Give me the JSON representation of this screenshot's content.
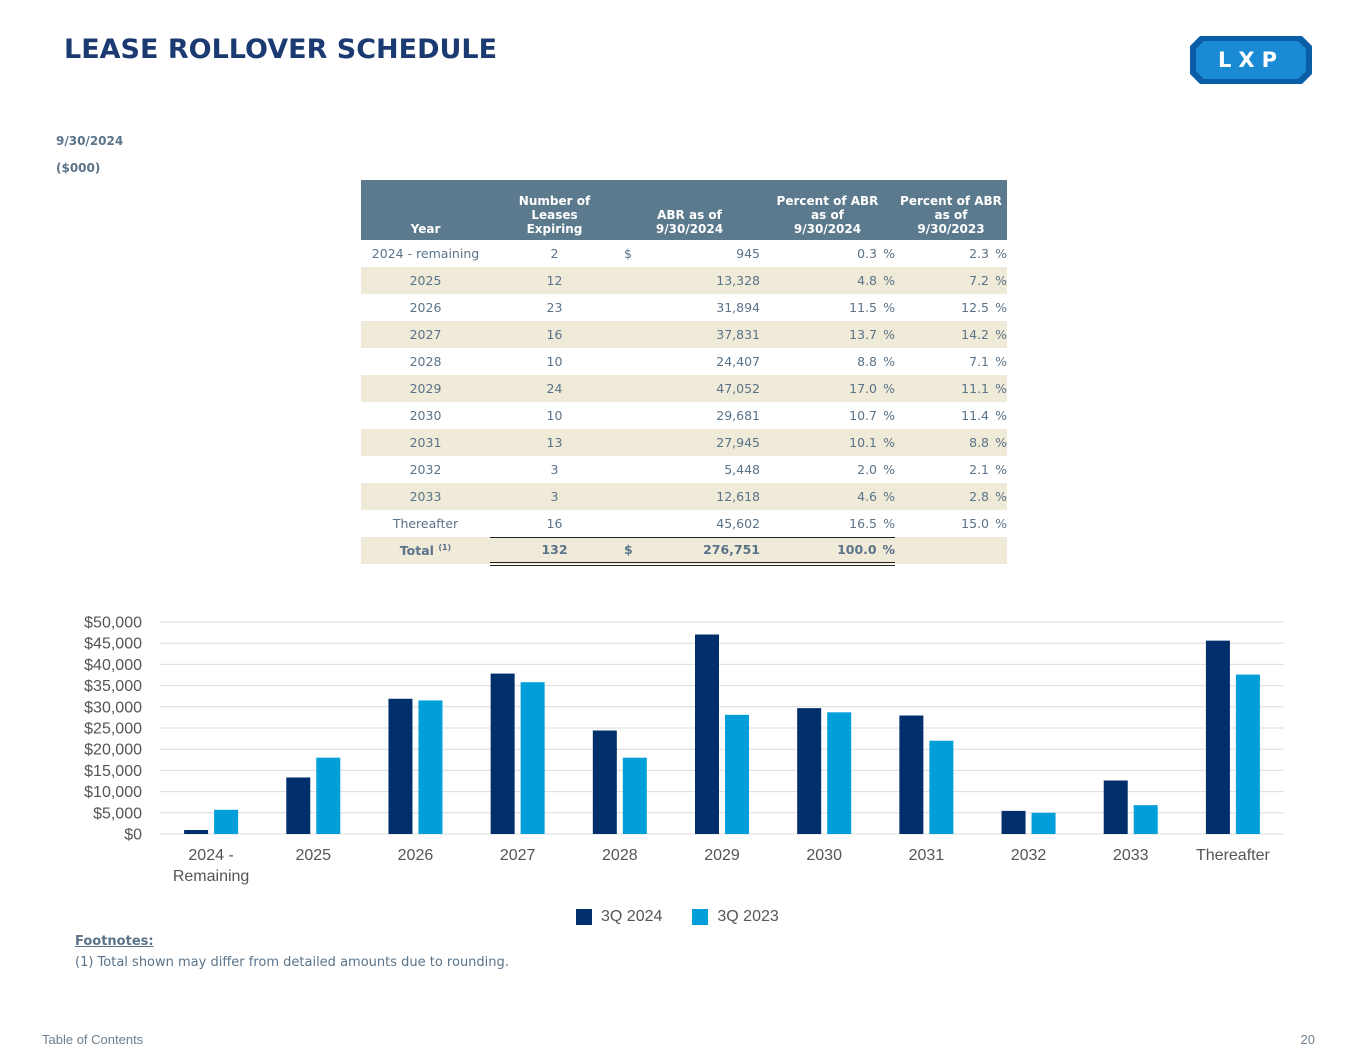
{
  "title": "LEASE ROLLOVER SCHEDULE",
  "logo": {
    "text": "LXP",
    "colors": [
      "#1a8ad4",
      "#0a5ea8",
      "#2ca3ea"
    ]
  },
  "date": "9/30/2024",
  "units": "($000)",
  "table": {
    "headers": {
      "year": "Year",
      "leases": [
        "Number of",
        "Leases",
        "Expiring"
      ],
      "abr": [
        "ABR as of",
        "9/30/2024"
      ],
      "pct_2024": [
        "Percent of ABR",
        "as of",
        "9/30/2024"
      ],
      "pct_2023": [
        "Percent of ABR",
        "as of",
        "9/30/2023"
      ]
    },
    "rows": [
      {
        "year": "2024 - remaining",
        "leases": "2",
        "dollar": "$",
        "abr": "945",
        "pct_2024": "0.3",
        "pct_2023": "2.3"
      },
      {
        "year": "2025",
        "leases": "12",
        "dollar": "",
        "abr": "13,328",
        "pct_2024": "4.8",
        "pct_2023": "7.2"
      },
      {
        "year": "2026",
        "leases": "23",
        "dollar": "",
        "abr": "31,894",
        "pct_2024": "11.5",
        "pct_2023": "12.5"
      },
      {
        "year": "2027",
        "leases": "16",
        "dollar": "",
        "abr": "37,831",
        "pct_2024": "13.7",
        "pct_2023": "14.2"
      },
      {
        "year": "2028",
        "leases": "10",
        "dollar": "",
        "abr": "24,407",
        "pct_2024": "8.8",
        "pct_2023": "7.1"
      },
      {
        "year": "2029",
        "leases": "24",
        "dollar": "",
        "abr": "47,052",
        "pct_2024": "17.0",
        "pct_2023": "11.1"
      },
      {
        "year": "2030",
        "leases": "10",
        "dollar": "",
        "abr": "29,681",
        "pct_2024": "10.7",
        "pct_2023": "11.4"
      },
      {
        "year": "2031",
        "leases": "13",
        "dollar": "",
        "abr": "27,945",
        "pct_2024": "10.1",
        "pct_2023": "8.8"
      },
      {
        "year": "2032",
        "leases": "3",
        "dollar": "",
        "abr": "5,448",
        "pct_2024": "2.0",
        "pct_2023": "2.1"
      },
      {
        "year": "2033",
        "leases": "3",
        "dollar": "",
        "abr": "12,618",
        "pct_2024": "4.6",
        "pct_2023": "2.8"
      },
      {
        "year": "Thereafter",
        "leases": "16",
        "dollar": "",
        "abr": "45,602",
        "pct_2024": "16.5",
        "pct_2023": "15.0"
      }
    ],
    "pct_symbol": "%",
    "total": {
      "label": "Total",
      "footnote_ref": "(1)",
      "leases": "132",
      "dollar": "$",
      "abr": "276,751",
      "pct_2024": "100.0"
    }
  },
  "chart_data": {
    "type": "bar",
    "categories": [
      "2024 - Remaining",
      "2025",
      "2026",
      "2027",
      "2028",
      "2029",
      "2030",
      "2031",
      "2032",
      "2033",
      "Thereafter"
    ],
    "series": [
      {
        "name": "3Q 2024",
        "color": "#002f6c",
        "values": [
          945,
          13328,
          31894,
          37831,
          24407,
          47052,
          29681,
          27945,
          5448,
          12618,
          45602
        ]
      },
      {
        "name": "3Q 2023",
        "color": "#009fda",
        "values": [
          5700,
          18000,
          31500,
          35800,
          18000,
          28100,
          28700,
          22000,
          5000,
          6800,
          37600
        ]
      }
    ],
    "ylim": [
      0,
      50000
    ],
    "yticks": [
      0,
      5000,
      10000,
      15000,
      20000,
      25000,
      30000,
      35000,
      40000,
      45000,
      50000
    ],
    "ytick_labels": [
      "$0",
      "$5,000",
      "$10,000",
      "$15,000",
      "$20,000",
      "$25,000",
      "$30,000",
      "$35,000",
      "$40,000",
      "$45,000",
      "$50,000"
    ],
    "grid": true,
    "legend": "bottom-center"
  },
  "footnotes": {
    "heading": "Footnotes:",
    "items": [
      "(1)  Total shown may differ from detailed amounts due to rounding."
    ]
  },
  "footer": {
    "toc": "Table of Contents",
    "page": "20"
  }
}
